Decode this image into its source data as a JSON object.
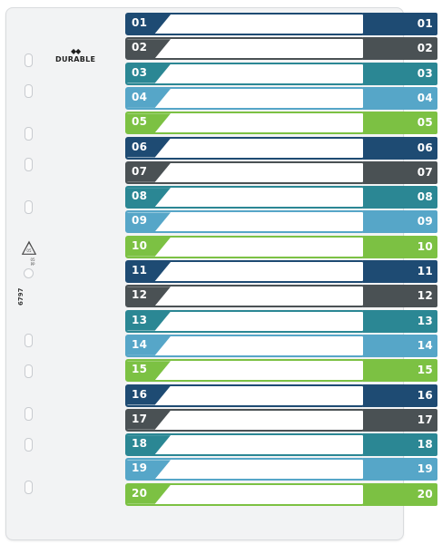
{
  "brand": {
    "name": "DURABLE",
    "mark": "◆◆"
  },
  "article_number": "6797",
  "recycle_code": "05 PP",
  "colors": {
    "navy": "#1e4b73",
    "charcoal": "#4a5154",
    "teal": "#2b8794",
    "sky": "#56a6c8",
    "green": "#7cc143"
  },
  "tabs": [
    {
      "label": "01",
      "color": "#1e4b73"
    },
    {
      "label": "02",
      "color": "#4a5154"
    },
    {
      "label": "03",
      "color": "#2b8794"
    },
    {
      "label": "04",
      "color": "#56a6c8"
    },
    {
      "label": "05",
      "color": "#7cc143"
    },
    {
      "label": "06",
      "color": "#1e4b73"
    },
    {
      "label": "07",
      "color": "#4a5154"
    },
    {
      "label": "08",
      "color": "#2b8794"
    },
    {
      "label": "09",
      "color": "#56a6c8"
    },
    {
      "label": "10",
      "color": "#7cc143"
    },
    {
      "label": "11",
      "color": "#1e4b73"
    },
    {
      "label": "12",
      "color": "#4a5154"
    },
    {
      "label": "13",
      "color": "#2b8794"
    },
    {
      "label": "14",
      "color": "#56a6c8"
    },
    {
      "label": "15",
      "color": "#7cc143"
    },
    {
      "label": "16",
      "color": "#1e4b73"
    },
    {
      "label": "17",
      "color": "#4a5154"
    },
    {
      "label": "18",
      "color": "#2b8794"
    },
    {
      "label": "19",
      "color": "#56a6c8"
    },
    {
      "label": "20",
      "color": "#7cc143"
    }
  ]
}
